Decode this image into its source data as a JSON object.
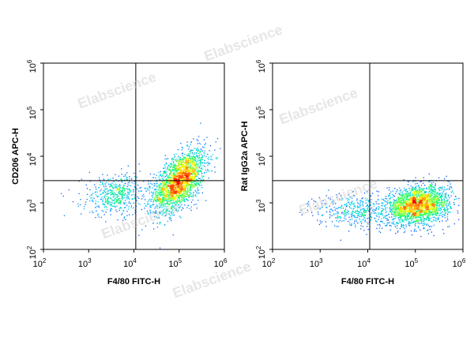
{
  "watermark": "Elabscience",
  "chart_data": [
    {
      "type": "scatter",
      "title": "",
      "xlabel": "F4/80 FITC-H",
      "ylabel": "CD206 APC-H",
      "x_scale": "log",
      "y_scale": "log",
      "xlim": [
        100,
        1000000
      ],
      "ylim": [
        100,
        1000000
      ],
      "x_ticks": [
        "10^2",
        "10^3",
        "10^4",
        "10^5",
        "10^6"
      ],
      "y_ticks": [
        "10^2",
        "10^3",
        "10^4",
        "10^5",
        "10^6"
      ],
      "gate": {
        "x": 11000,
        "y": 3000
      },
      "populations": [
        {
          "name": "main",
          "center": [
            100000,
            3000
          ],
          "spread_log": [
            0.28,
            0.33
          ],
          "count": 2200,
          "corr": 0.55
        },
        {
          "name": "tail",
          "center": [
            4000,
            1500
          ],
          "spread_log": [
            0.38,
            0.22
          ],
          "count": 500,
          "corr": 0.1
        }
      ],
      "density_colormap": [
        "#0000ff",
        "#00c8ff",
        "#00ff60",
        "#ffff00",
        "#ff6000",
        "#ff0000"
      ]
    },
    {
      "type": "scatter",
      "title": "",
      "xlabel": "F4/80 FITC-H",
      "ylabel": "Rat IgG2a APC-H",
      "x_scale": "log",
      "y_scale": "log",
      "xlim": [
        100,
        1000000
      ],
      "ylim": [
        100,
        1000000
      ],
      "x_ticks": [
        "10^2",
        "10^3",
        "10^4",
        "10^5",
        "10^6"
      ],
      "y_ticks": [
        "10^2",
        "10^3",
        "10^4",
        "10^5",
        "10^6"
      ],
      "gate": {
        "x": 11000,
        "y": 3000
      },
      "populations": [
        {
          "name": "main",
          "center": [
            110000,
            900
          ],
          "spread_log": [
            0.33,
            0.2
          ],
          "count": 2200,
          "corr": 0.2
        },
        {
          "name": "tail",
          "center": [
            5000,
            700
          ],
          "spread_log": [
            0.4,
            0.18
          ],
          "count": 400,
          "corr": 0.0
        }
      ],
      "density_colormap": [
        "#0000ff",
        "#00c8ff",
        "#00ff60",
        "#ffff00",
        "#ff6000",
        "#ff0000"
      ]
    }
  ]
}
